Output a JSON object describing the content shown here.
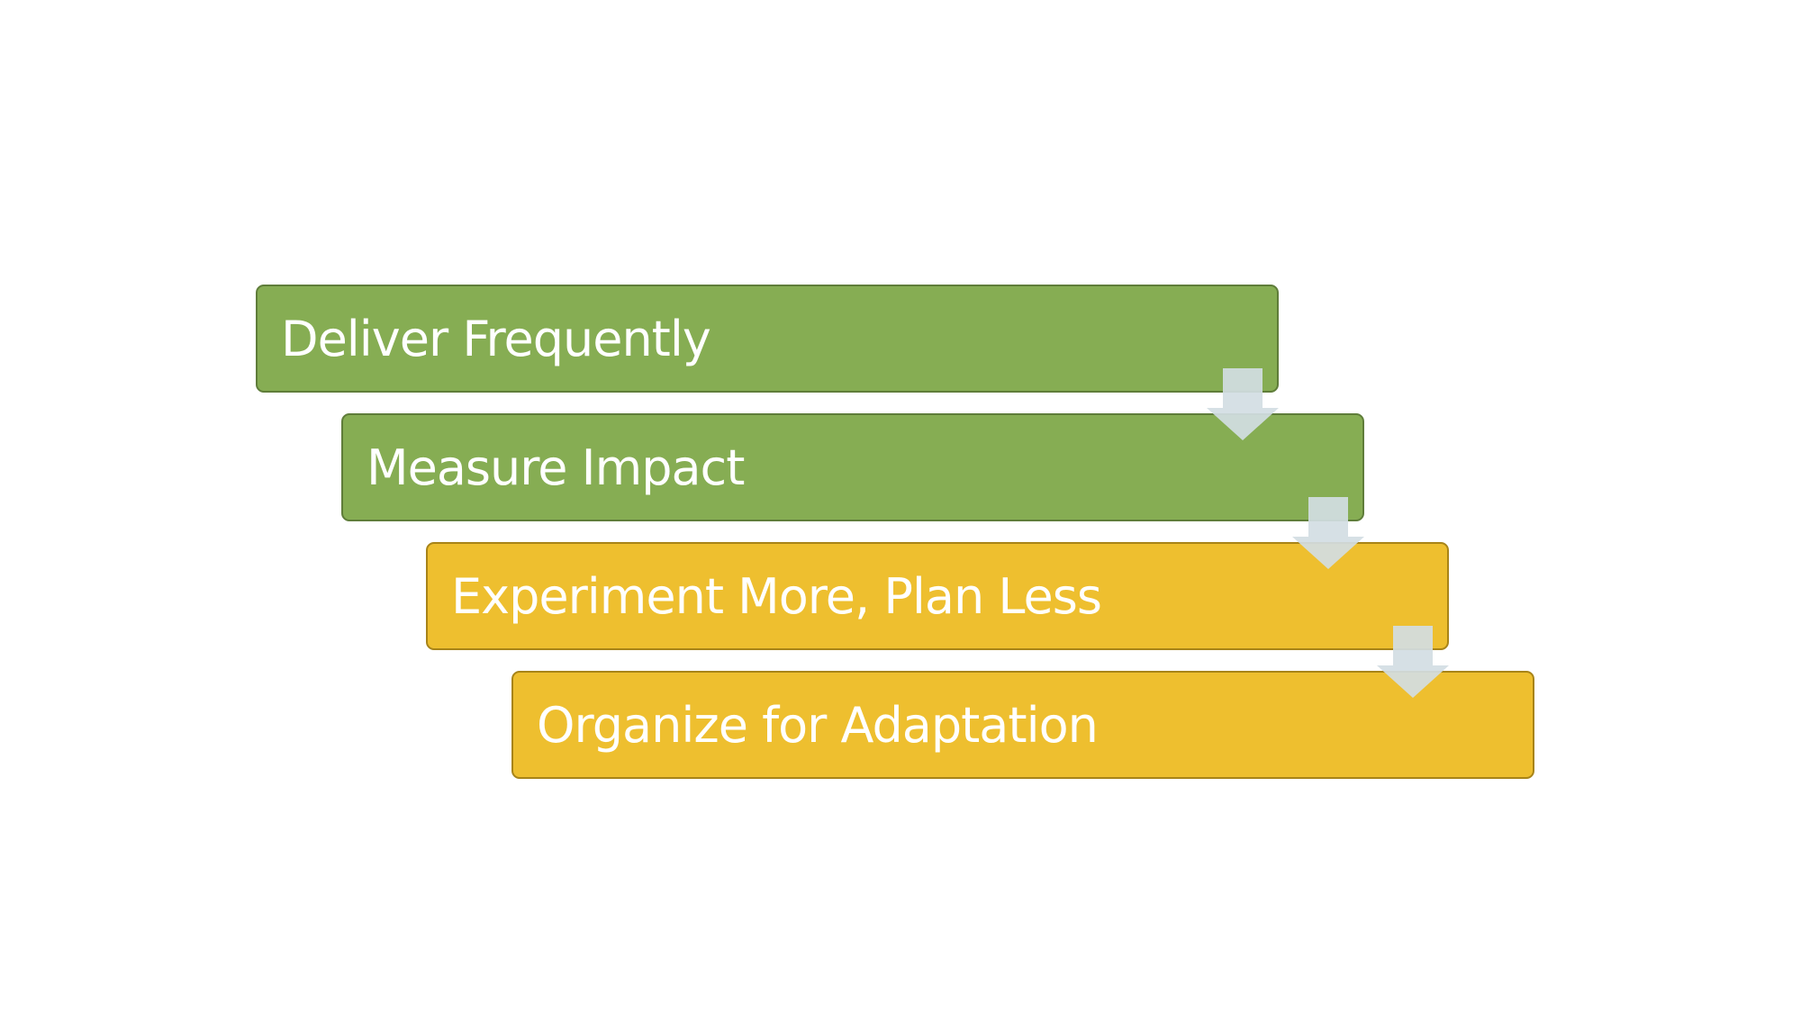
{
  "steps": [
    {
      "label": "Deliver Frequently",
      "color": "#86ad53"
    },
    {
      "label": "Measure Impact",
      "color": "#86ad53"
    },
    {
      "label": "Experiment More, Plan Less",
      "color": "#eebf2f"
    },
    {
      "label": "Organize for Adaptation",
      "color": "#eebf2f"
    }
  ],
  "connector": {
    "icon": "down-arrow-icon",
    "color": "#d3dde3"
  }
}
